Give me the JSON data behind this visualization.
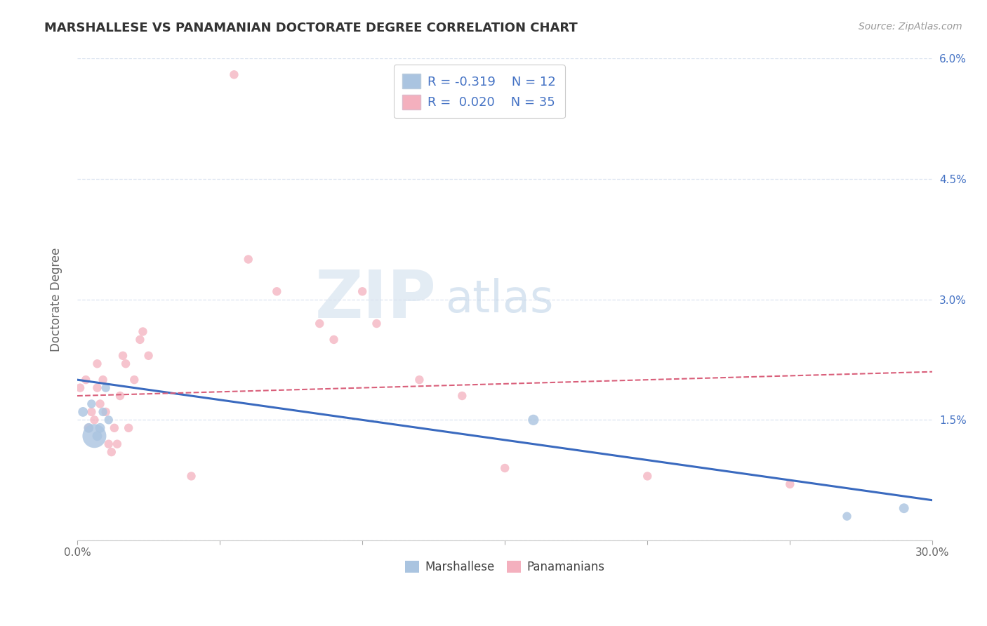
{
  "title": "MARSHALLESE VS PANAMANIAN DOCTORATE DEGREE CORRELATION CHART",
  "source": "Source: ZipAtlas.com",
  "ylabel": "Doctorate Degree",
  "watermark_zip": "ZIP",
  "watermark_atlas": "atlas",
  "legend_blue_r": "R = -0.319",
  "legend_blue_n": "N = 12",
  "legend_pink_r": "R = 0.020",
  "legend_pink_n": "N = 35",
  "legend_label_blue": "Marshallese",
  "legend_label_pink": "Panamanians",
  "xlim": [
    0.0,
    0.3
  ],
  "ylim": [
    0.0,
    0.06
  ],
  "x_ticks": [
    0.0,
    0.05,
    0.1,
    0.15,
    0.2,
    0.25,
    0.3
  ],
  "x_tick_labels": [
    "0.0%",
    "",
    "",
    "",
    "",
    "",
    "30.0%"
  ],
  "y_ticks": [
    0.0,
    0.015,
    0.03,
    0.045,
    0.06
  ],
  "y_tick_labels_right": [
    "",
    "1.5%",
    "3.0%",
    "4.5%",
    "6.0%"
  ],
  "blue_color": "#aac4e0",
  "pink_color": "#f4b0be",
  "blue_line_color": "#3a6abf",
  "pink_line_color": "#d95f7a",
  "grid_color": "#dce4f0",
  "background_color": "#ffffff",
  "blue_scatter_x": [
    0.002,
    0.004,
    0.005,
    0.006,
    0.007,
    0.008,
    0.009,
    0.01,
    0.011,
    0.16,
    0.27,
    0.29
  ],
  "blue_scatter_y": [
    0.016,
    0.014,
    0.017,
    0.013,
    0.013,
    0.014,
    0.016,
    0.019,
    0.015,
    0.015,
    0.003,
    0.004
  ],
  "blue_scatter_sizes": [
    100,
    100,
    80,
    600,
    100,
    100,
    80,
    80,
    80,
    120,
    80,
    100
  ],
  "pink_scatter_x": [
    0.001,
    0.003,
    0.004,
    0.005,
    0.006,
    0.007,
    0.007,
    0.008,
    0.009,
    0.01,
    0.011,
    0.012,
    0.013,
    0.014,
    0.015,
    0.016,
    0.017,
    0.018,
    0.02,
    0.022,
    0.023,
    0.025,
    0.04,
    0.055,
    0.06,
    0.07,
    0.085,
    0.09,
    0.1,
    0.105,
    0.12,
    0.135,
    0.15,
    0.2,
    0.25
  ],
  "pink_scatter_y": [
    0.019,
    0.02,
    0.014,
    0.016,
    0.015,
    0.022,
    0.019,
    0.017,
    0.02,
    0.016,
    0.012,
    0.011,
    0.014,
    0.012,
    0.018,
    0.023,
    0.022,
    0.014,
    0.02,
    0.025,
    0.026,
    0.023,
    0.008,
    0.058,
    0.035,
    0.031,
    0.027,
    0.025,
    0.031,
    0.027,
    0.02,
    0.018,
    0.009,
    0.008,
    0.007
  ],
  "pink_scatter_sizes": [
    80,
    80,
    80,
    80,
    80,
    80,
    80,
    80,
    80,
    80,
    80,
    80,
    80,
    80,
    80,
    80,
    80,
    80,
    80,
    80,
    80,
    80,
    80,
    80,
    80,
    80,
    80,
    80,
    80,
    80,
    80,
    80,
    80,
    80,
    80
  ],
  "blue_line_x0": 0.0,
  "blue_line_y0": 0.02,
  "blue_line_x1": 0.3,
  "blue_line_y1": 0.005,
  "pink_line_x0": 0.0,
  "pink_line_y0": 0.018,
  "pink_line_x1": 0.3,
  "pink_line_y1": 0.021
}
